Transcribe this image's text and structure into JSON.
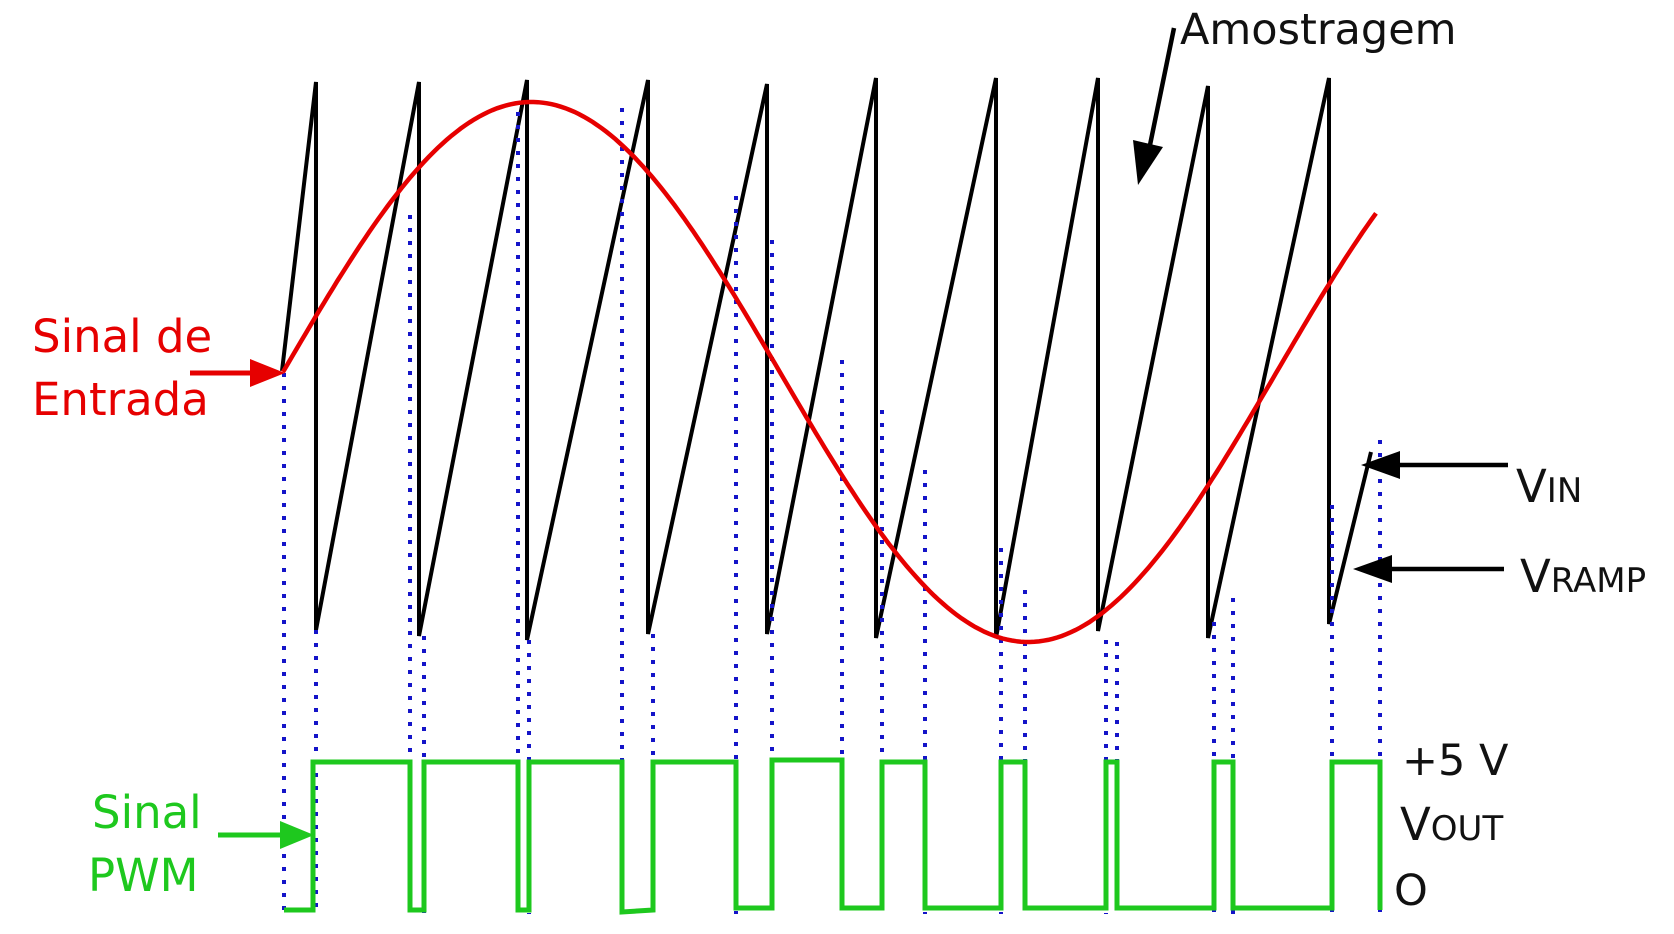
{
  "colors": {
    "input": "#e60000",
    "ramp": "#000000",
    "pwm": "#1ec81e",
    "guide": "#1414c8",
    "label_dark": "#111111"
  },
  "labels": {
    "sampling": "Amostragem",
    "input_signal": [
      "Sinal de",
      "Entrada"
    ],
    "pwm_signal": [
      "Sinal",
      "PWM"
    ],
    "vin": {
      "main": "V",
      "sub": "IN"
    },
    "vramp": {
      "main": "V",
      "sub": "RAMP"
    },
    "vout": {
      "main": "V",
      "sub": "OUT"
    },
    "high_level": "+5 V",
    "low_level": "O"
  },
  "icons": [
    "arrow-right-icon",
    "arrow-left-icon",
    "arrow-down-icon"
  ]
}
